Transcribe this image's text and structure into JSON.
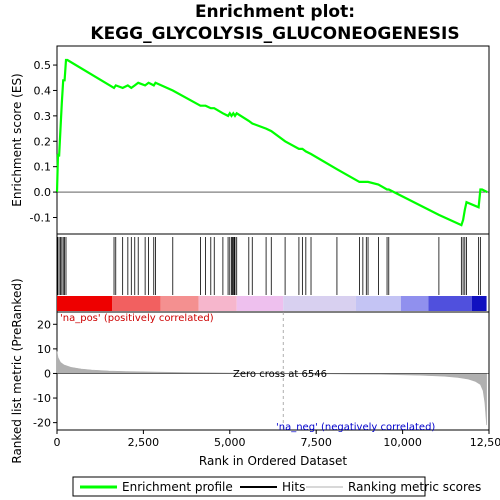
{
  "chart_data": {
    "type": "line",
    "title_line1": "Enrichment plot:",
    "title_line2": "KEGG_GLYCOLYSIS_GLUCONEOGENESIS",
    "xlabel": "Rank in Ordered Dataset",
    "ylabel_top": "Enrichment score (ES)",
    "ylabel_bottom": "Ranked list metric (PreRanked)",
    "xlim": [
      0,
      12500
    ],
    "x_ticks": [
      0,
      2500,
      5000,
      7500,
      10000,
      12500
    ],
    "x_tick_labels": [
      "0",
      "2,500",
      "5,000",
      "7,500",
      "10,000",
      "12,500"
    ],
    "es_ylim": [
      -0.165,
      0.575
    ],
    "es_ticks": [
      -0.1,
      0.0,
      0.1,
      0.2,
      0.3,
      0.4,
      0.5
    ],
    "es_tick_labels": [
      "-0.1",
      "0.0",
      "0.1",
      "0.2",
      "0.3",
      "0.4",
      "0.5"
    ],
    "metric_ylim": [
      -23,
      25
    ],
    "metric_ticks": [
      -20,
      -10,
      0,
      10,
      20
    ],
    "metric_tick_labels": [
      "-20",
      "-10",
      "0",
      "10",
      "20"
    ],
    "es_series": {
      "name": "Enrichment profile",
      "color": "#00ff00",
      "x": [
        0,
        30,
        60,
        100,
        140,
        180,
        220,
        260,
        300,
        1650,
        1700,
        1900,
        2050,
        2150,
        2250,
        2350,
        2550,
        2650,
        2800,
        2850,
        3350,
        4150,
        4300,
        4450,
        4550,
        4800,
        4950,
        5000,
        5050,
        5100,
        5150,
        5200,
        5550,
        5650,
        6050,
        6200,
        6600,
        7000,
        7100,
        7200,
        7350,
        8100,
        8750,
        8850,
        8950,
        9000,
        9300,
        9550,
        9600,
        11050,
        11700,
        11750,
        11800,
        11850,
        12200,
        12250,
        12300,
        12450
      ],
      "y": [
        0.0,
        0.15,
        0.14,
        0.25,
        0.35,
        0.44,
        0.44,
        0.52,
        0.52,
        0.41,
        0.42,
        0.41,
        0.42,
        0.41,
        0.42,
        0.43,
        0.42,
        0.43,
        0.42,
        0.43,
        0.4,
        0.34,
        0.34,
        0.33,
        0.33,
        0.31,
        0.3,
        0.31,
        0.3,
        0.31,
        0.3,
        0.31,
        0.28,
        0.27,
        0.25,
        0.24,
        0.2,
        0.17,
        0.17,
        0.16,
        0.15,
        0.09,
        0.04,
        0.04,
        0.04,
        0.04,
        0.03,
        0.01,
        0.01,
        -0.09,
        -0.13,
        -0.11,
        -0.07,
        -0.04,
        -0.06,
        0.01,
        0.01,
        0.0
      ]
    },
    "hits": [
      20,
      60,
      100,
      140,
      180,
      220,
      260,
      1650,
      1700,
      1900,
      2050,
      2150,
      2250,
      2350,
      2550,
      2650,
      2800,
      2850,
      3350,
      4150,
      4300,
      4450,
      4550,
      4800,
      4950,
      5000,
      5050,
      5080,
      5100,
      5130,
      5150,
      5200,
      5550,
      5650,
      6050,
      6200,
      6600,
      7000,
      7100,
      7200,
      7350,
      8100,
      8750,
      8850,
      8950,
      9000,
      9300,
      9550,
      9600,
      11050,
      11700,
      11750,
      11800,
      11850,
      12200,
      12250
    ],
    "metric_profile": {
      "x": [
        0,
        30,
        100,
        200,
        400,
        700,
        1000,
        1500,
        2000,
        3000,
        4000,
        5000,
        6000,
        6546,
        7500,
        8500,
        9500,
        10500,
        11200,
        11600,
        11900,
        12100,
        12250,
        12330,
        12380,
        12430
      ],
      "y": [
        9.0,
        6.5,
        4.5,
        3.5,
        2.5,
        1.8,
        1.4,
        1.0,
        0.8,
        0.5,
        0.3,
        0.15,
        0.05,
        0.0,
        -0.1,
        -0.25,
        -0.4,
        -0.7,
        -1.1,
        -1.6,
        -2.3,
        -3.2,
        -4.5,
        -7.0,
        -12.0,
        -21.0
      ],
      "color": "#b0b0b0"
    },
    "annotations": {
      "pos_label": "'na_pos' (positively correlated)",
      "pos_color": "#cc0000",
      "neg_label": "'na_neg' (negatively correlated)",
      "neg_color": "#0000cc",
      "zero_cross": "Zero cross at 6546"
    },
    "legend": {
      "placement": "bottom",
      "items": [
        {
          "label": "Enrichment profile",
          "color": "#00ff00"
        },
        {
          "label": "Hits",
          "color": "#000000"
        },
        {
          "label": "Ranking metric scores",
          "color": "#b0b0b0"
        }
      ]
    },
    "heatbar_colors": [
      "#ee0000",
      "#f26060",
      "#f49090",
      "#f6b6cc",
      "#eec0ee",
      "#d8d0f0",
      "#c4c4f4",
      "#9090ee",
      "#5050dd",
      "#1010c0"
    ]
  }
}
